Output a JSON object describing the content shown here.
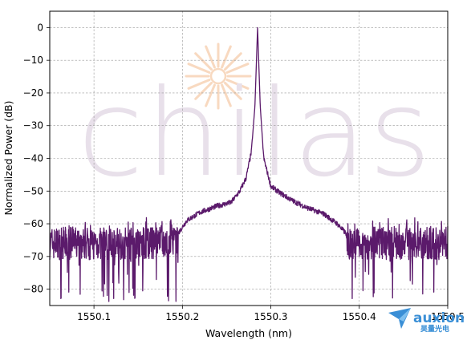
{
  "chart_data": {
    "type": "line",
    "title": "",
    "xlabel": "Wavelength (nm)",
    "ylabel": "Normalized Power (dB)",
    "xlim": [
      1550.05,
      1550.5
    ],
    "ylim": [
      -85,
      5
    ],
    "xticks": [
      1550.1,
      1550.2,
      1550.3,
      1550.4,
      1550.5
    ],
    "xtick_labels": [
      "1550.1",
      "1550.2",
      "1550.3",
      "1550.4",
      "1550.5"
    ],
    "yticks": [
      0,
      -10,
      -20,
      -30,
      -40,
      -50,
      -60,
      -70,
      -80
    ],
    "ytick_labels": [
      "0",
      "−10",
      "−20",
      "−30",
      "−40",
      "−50",
      "−60",
      "−70",
      "−80"
    ],
    "grid": true,
    "line_color": "#5b1a6b",
    "series": [
      {
        "peak_wavelength": 1550.285,
        "peak_value": 0,
        "noise_floor_left": {
          "x_range": [
            1550.05,
            1550.195
          ],
          "mean": -66,
          "spread": 5,
          "dips_to": -84
        },
        "noise_floor_right": {
          "x_range": [
            1550.385,
            1550.5
          ],
          "mean": -66,
          "spread": 5,
          "dips_to": -84
        },
        "envelope": [
          {
            "x": 1550.195,
            "y": -63
          },
          {
            "x": 1550.205,
            "y": -59
          },
          {
            "x": 1550.22,
            "y": -56.5
          },
          {
            "x": 1550.24,
            "y": -54.5
          },
          {
            "x": 1550.255,
            "y": -53.5
          },
          {
            "x": 1550.265,
            "y": -50
          },
          {
            "x": 1550.272,
            "y": -46
          },
          {
            "x": 1550.278,
            "y": -38
          },
          {
            "x": 1550.282,
            "y": -24
          },
          {
            "x": 1550.285,
            "y": 0
          },
          {
            "x": 1550.288,
            "y": -24
          },
          {
            "x": 1550.292,
            "y": -40
          },
          {
            "x": 1550.3,
            "y": -48.5
          },
          {
            "x": 1550.31,
            "y": -50.5
          },
          {
            "x": 1550.325,
            "y": -53
          },
          {
            "x": 1550.34,
            "y": -55
          },
          {
            "x": 1550.36,
            "y": -57
          },
          {
            "x": 1550.375,
            "y": -60
          },
          {
            "x": 1550.385,
            "y": -63
          }
        ]
      }
    ]
  },
  "watermark": {
    "text": "chilas",
    "color": "#e8e0ea",
    "sun_color": "#f8d9c0"
  },
  "brand": {
    "name": "auxion",
    "subtitle": "昊量光电",
    "color": "#3a8fd6"
  }
}
